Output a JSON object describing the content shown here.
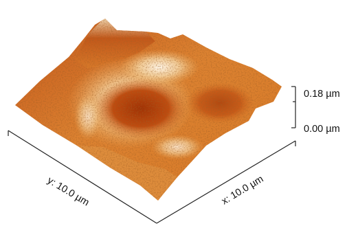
{
  "z_scale": {
    "max_label": "0.18 µm",
    "min_label": "0.00 µm",
    "max_value": 0.18,
    "min_value": 0.0,
    "unit": "µm"
  },
  "axes": {
    "y_label": "y: 10.0 µm",
    "x_label": "x: 10.0 µm"
  },
  "colors": {
    "deep": "#a83a06",
    "mid": "#d9731c",
    "light": "#f2b45c",
    "highlight": "#fbe9c8",
    "axis": "#222222"
  }
}
